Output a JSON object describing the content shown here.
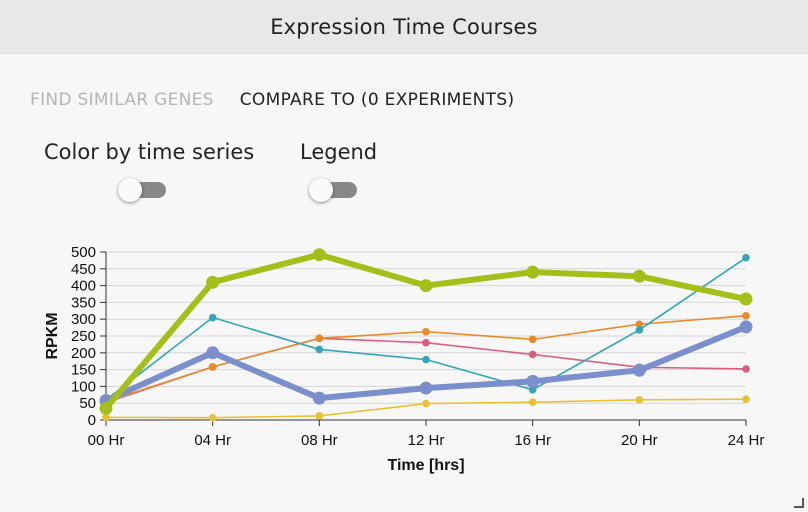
{
  "window": {
    "title": "Expression Time Courses"
  },
  "tabs": [
    {
      "label": "FIND SIMILAR GENES",
      "active": false
    },
    {
      "label": "COMPARE TO (0 EXPERIMENTS)",
      "active": true
    }
  ],
  "toggles": {
    "color_by_time_series": {
      "label": "Color by time series",
      "on": false
    },
    "legend": {
      "label": "Legend",
      "on": false
    }
  },
  "chart_data": {
    "type": "line",
    "xlabel": "Time [hrs]",
    "ylabel": "RPKM",
    "categories": [
      "00 Hr",
      "04 Hr",
      "08 Hr",
      "12 Hr",
      "16 Hr",
      "20 Hr",
      "24 Hr"
    ],
    "ylim": [
      0,
      500
    ],
    "yticks": [
      0,
      50,
      100,
      150,
      200,
      250,
      300,
      350,
      400,
      450,
      500
    ],
    "grid": "horizontal",
    "legend": "none",
    "series": [
      {
        "color": "#e8c233",
        "values": [
          8,
          7,
          12,
          49,
          53,
          60,
          62
        ],
        "emphasis": false
      },
      {
        "color": "#d95f7f",
        "values": [
          52,
          158,
          243,
          230,
          195,
          157,
          152
        ],
        "emphasis": false
      },
      {
        "color": "#e88a2a",
        "values": [
          55,
          158,
          243,
          263,
          240,
          285,
          310
        ],
        "emphasis": false
      },
      {
        "color": "#33a5b5",
        "values": [
          60,
          305,
          210,
          180,
          90,
          268,
          483
        ],
        "emphasis": false
      },
      {
        "color": "#7b8fcc",
        "values": [
          58,
          200,
          65,
          95,
          115,
          148,
          277
        ],
        "emphasis": true
      },
      {
        "color": "#a4bf1a",
        "values": [
          35,
          410,
          492,
          400,
          440,
          428,
          360
        ],
        "emphasis": true
      }
    ]
  }
}
